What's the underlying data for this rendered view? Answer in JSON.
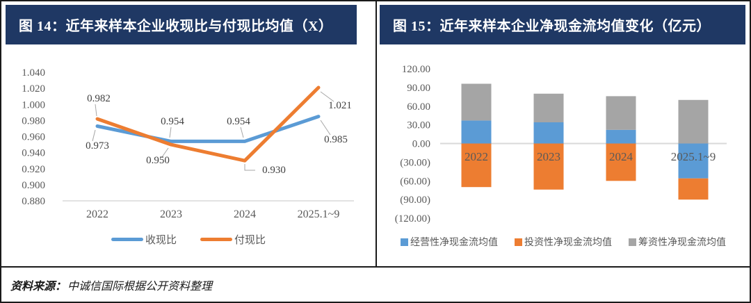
{
  "footer": {
    "label": "资料来源：",
    "text": "中诚信国际根据公开资料整理"
  },
  "chart_data": [
    {
      "type": "line",
      "title": "图 14：近年来样本企业收现比与付现比均值（X）",
      "categories": [
        "2022",
        "2023",
        "2024",
        "2025.1~9"
      ],
      "series": [
        {
          "name": "收现比",
          "color": "#5B9BD5",
          "values": [
            0.973,
            0.954,
            0.954,
            0.985
          ]
        },
        {
          "name": "付现比",
          "color": "#ED7D31",
          "values": [
            0.982,
            0.95,
            0.93,
            1.021
          ]
        }
      ],
      "data_labels": [
        "0.973",
        "0.954",
        "0.954",
        "0.985",
        "0.982",
        "0.950",
        "0.930",
        "1.021"
      ],
      "ylim": [
        0.88,
        1.04
      ],
      "yticks": [
        "1.040",
        "1.020",
        "1.000",
        "0.980",
        "0.960",
        "0.940",
        "0.920",
        "0.900",
        "0.880"
      ],
      "xlabel": "",
      "ylabel": "",
      "grid": false,
      "legend_position": "bottom"
    },
    {
      "type": "bar",
      "stacked": true,
      "title": "图 15：近年来样本企业净现金流均值变化（亿元）",
      "categories": [
        "2022",
        "2023",
        "2024",
        "2025.1~9"
      ],
      "series": [
        {
          "name": "经营性净现金流均值",
          "color": "#5B9BD5",
          "values": [
            37,
            34,
            22,
            -56
          ]
        },
        {
          "name": "投资性净现金流均值",
          "color": "#ED7D31",
          "values": [
            -70,
            -74,
            -60,
            -34
          ]
        },
        {
          "name": "筹资性净现金流均值",
          "color": "#A5A5A5",
          "values": [
            59,
            46,
            54,
            70
          ]
        }
      ],
      "ylim": [
        -120,
        120
      ],
      "yticks": [
        "120.00",
        "90.00",
        "60.00",
        "30.00",
        "0.00",
        "(30.00)",
        "(60.00)",
        "(90.00)",
        "(120.00)"
      ],
      "xlabel": "",
      "ylabel": "",
      "grid": false,
      "legend_position": "bottom"
    }
  ],
  "colors": {
    "header_bg": "#1F3864",
    "header_text": "#ffffff",
    "axis_text": "#595959",
    "data_label_text": "#404040",
    "axis_line": "#D9D9D9",
    "leader_line": "#A6A6A6",
    "border": "#1a1a1a"
  }
}
